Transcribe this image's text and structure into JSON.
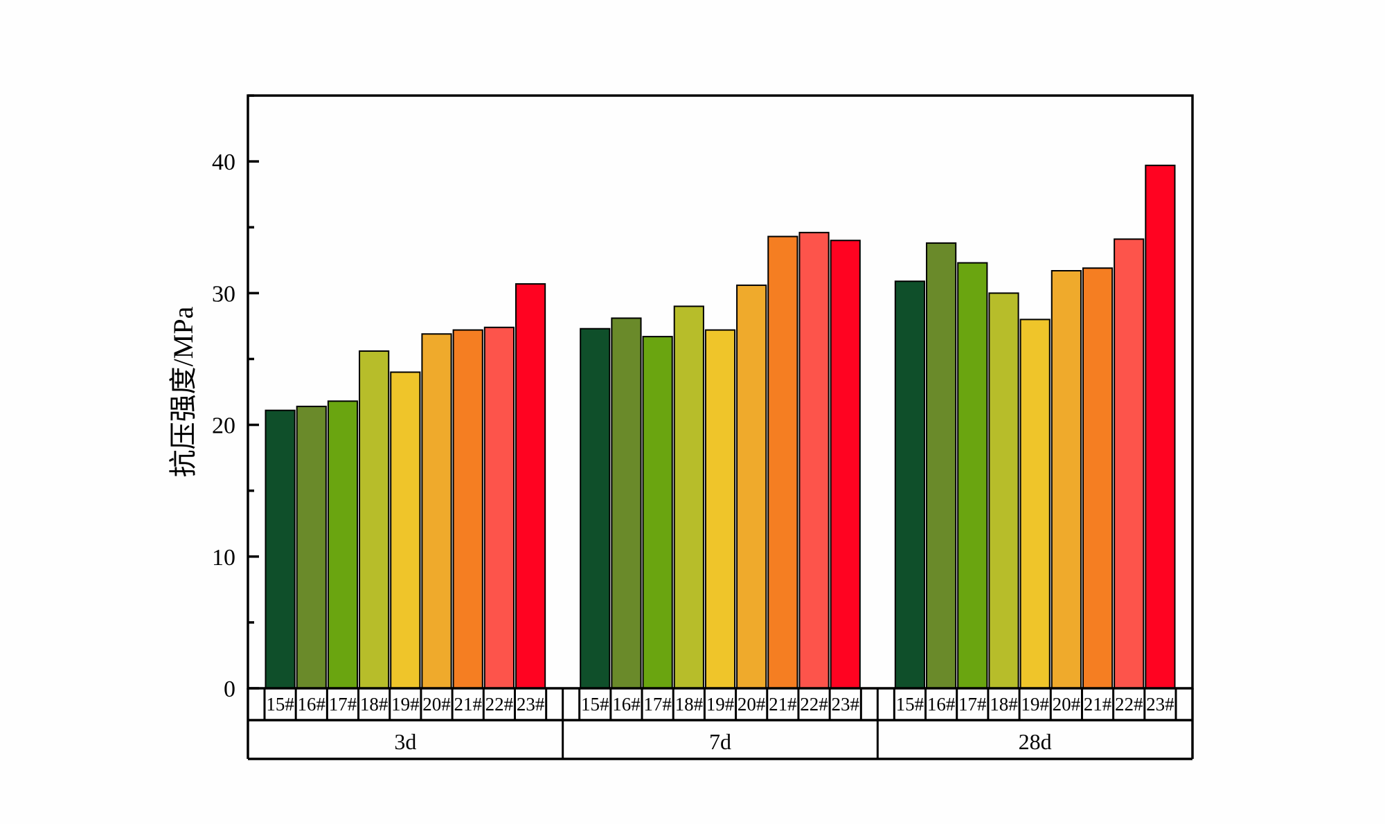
{
  "chart_data": {
    "type": "bar",
    "ylabel": "抗压强度/MPa",
    "xlabel": "",
    "ylim": [
      0,
      45
    ],
    "yticks": [
      0,
      10,
      20,
      30,
      40
    ],
    "grid": false,
    "groups": [
      "3d",
      "7d",
      "28d"
    ],
    "categories": [
      "15#",
      "16#",
      "17#",
      "18#",
      "19#",
      "20#",
      "21#",
      "22#",
      "23#"
    ],
    "colors": [
      "#0f4f2a",
      "#6a8a2a",
      "#6aa510",
      "#b7bd2a",
      "#efc52a",
      "#efaa2c",
      "#f57e22",
      "#fd544b",
      "#ff0321"
    ],
    "series": [
      {
        "group": "3d",
        "values": [
          21.1,
          21.4,
          21.8,
          25.6,
          24.0,
          26.9,
          27.2,
          27.4,
          30.7
        ]
      },
      {
        "group": "7d",
        "values": [
          27.3,
          28.1,
          26.7,
          29.0,
          27.2,
          30.6,
          34.3,
          34.6,
          34.0
        ]
      },
      {
        "group": "28d",
        "values": [
          30.9,
          33.8,
          32.3,
          30.0,
          28.0,
          31.7,
          31.9,
          34.1,
          39.7
        ]
      }
    ]
  }
}
